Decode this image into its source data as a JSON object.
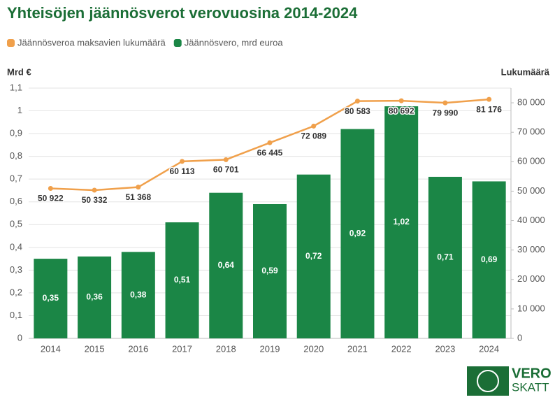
{
  "chart_data": {
    "type": "bar-line",
    "title": "Yhteisöjen jäännösverot verovuosina 2014-2024",
    "y_label": "Mrd €",
    "y2_label": "Lukumäärä",
    "categories": [
      "2014",
      "2015",
      "2016",
      "2017",
      "2018",
      "2019",
      "2020",
      "2021",
      "2022",
      "2023",
      "2024"
    ],
    "series": [
      {
        "name": "Jäännösvero, mrd euroa",
        "type": "bar",
        "color": "#1b8646",
        "values": [
          0.35,
          0.36,
          0.38,
          0.51,
          0.64,
          0.59,
          0.72,
          0.92,
          1.02,
          0.71,
          0.69
        ],
        "value_labels": [
          "0,35",
          "0,36",
          "0,38",
          "0,51",
          "0,64",
          "0,59",
          "0,72",
          "0,92",
          "1,02",
          "0,71",
          "0,69"
        ]
      },
      {
        "name": "Jäännösveroa maksavien lukumäärä",
        "type": "line",
        "axis": "y2",
        "color": "#f0a04b",
        "values": [
          50922,
          50332,
          51368,
          60113,
          60701,
          66445,
          72089,
          80583,
          80692,
          79990,
          81176
        ],
        "value_labels": [
          "50 922",
          "50 332",
          "51 368",
          "60 113",
          "60 701",
          "66 445",
          "72 089",
          "80 583",
          "80 692",
          "79 990",
          "81 176"
        ]
      }
    ],
    "ylim": [
      0,
      1.1
    ],
    "yticks": [
      0,
      {
        "value": 0.1,
        "label": "0,1"
      },
      {
        "value": 0.2,
        "label": "0,2"
      },
      {
        "value": 0.3,
        "label": "0,3"
      },
      {
        "value": 0.4,
        "label": "0,4"
      },
      {
        "value": 0.5,
        "label": "0,5"
      },
      {
        "value": 0.6,
        "label": "0,6"
      },
      {
        "value": 0.7,
        "label": "0,7"
      },
      {
        "value": 0.8,
        "label": "0,8"
      },
      {
        "value": 0.9,
        "label": "0,9"
      },
      1,
      {
        "value": 1.1,
        "label": "1,1"
      }
    ],
    "y2lim": [
      0,
      85000
    ],
    "y2ticks": [
      0,
      {
        "value": 10000,
        "label": "10 000"
      },
      {
        "value": 20000,
        "label": "20 000"
      },
      {
        "value": 30000,
        "label": "30 000"
      },
      {
        "value": 40000,
        "label": "40 000"
      },
      {
        "value": 50000,
        "label": "50 000"
      },
      {
        "value": 60000,
        "label": "60 000"
      },
      {
        "value": 70000,
        "label": "70 000"
      },
      {
        "value": 80000,
        "label": "80 000"
      }
    ],
    "grid": true
  },
  "logo": {
    "top": "VERO",
    "bottom": "SKATT"
  }
}
